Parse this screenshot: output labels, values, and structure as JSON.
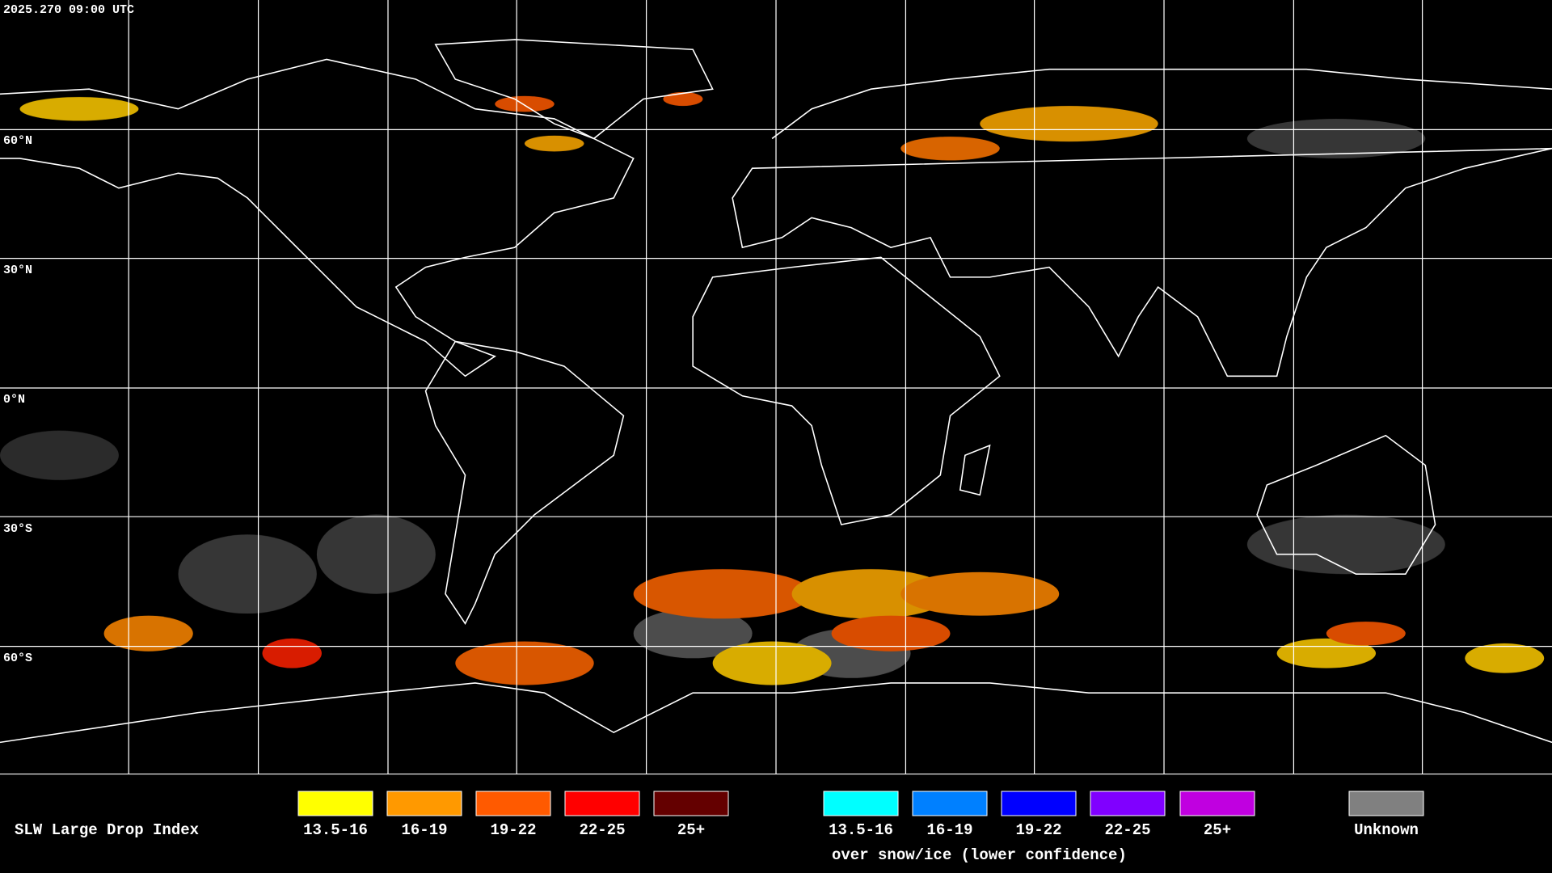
{
  "timestamp": "2025.270 09:00 UTC",
  "latitude_labels": [
    "60°N",
    "30°N",
    "0°N",
    "30°S",
    "60°S"
  ],
  "legend": {
    "title": "SLW Large Drop Index",
    "liquid": [
      {
        "label": "13.5-16",
        "color": "#ffff00"
      },
      {
        "label": "16-19",
        "color": "#ff9900"
      },
      {
        "label": "19-22",
        "color": "#ff5a00"
      },
      {
        "label": "22-25",
        "color": "#ff0000"
      },
      {
        "label": "25+",
        "color": "#640000"
      }
    ],
    "snow_ice": [
      {
        "label": "13.5-16",
        "color": "#00ffff"
      },
      {
        "label": "16-19",
        "color": "#0080ff"
      },
      {
        "label": "19-22",
        "color": "#0000ff"
      },
      {
        "label": "22-25",
        "color": "#8000ff"
      },
      {
        "label": "25+",
        "color": "#c000e0"
      }
    ],
    "snow_ice_note": "over snow/ice (lower confidence)",
    "unknown": {
      "label": "Unknown",
      "color": "#808080"
    }
  }
}
